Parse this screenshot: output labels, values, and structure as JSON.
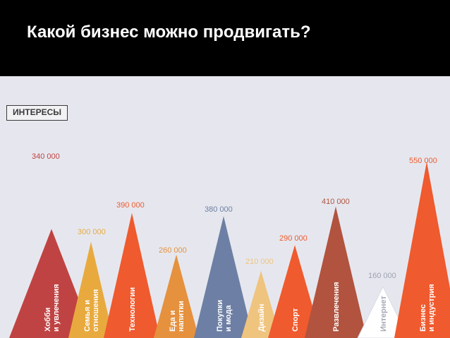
{
  "header": {
    "title": "Какой бизнес можно продвигать?"
  },
  "section_label": "ИНТЕРЕСЫ",
  "chart_data": {
    "type": "area",
    "title": "",
    "categories": [
      {
        "label": [
          "Хобби",
          "и увлечения"
        ],
        "value": 340000,
        "value_label": "340 000",
        "color": "#c04343"
      },
      {
        "label": [
          "Семья и",
          "отношения"
        ],
        "value": 300000,
        "value_label": "300 000",
        "color": "#e8aa3f"
      },
      {
        "label": [
          "Технологии"
        ],
        "value": 390000,
        "value_label": "390 000",
        "color": "#ef5a2e"
      },
      {
        "label": [
          "Еда и",
          "напитки"
        ],
        "value": 260000,
        "value_label": "260 000",
        "color": "#e5913e"
      },
      {
        "label": [
          "Покупки",
          "и мода"
        ],
        "value": 380000,
        "value_label": "380 000",
        "color": "#6d7fa4"
      },
      {
        "label": [
          "Дизайн"
        ],
        "value": 210000,
        "value_label": "210 000",
        "color": "#efc47f"
      },
      {
        "label": [
          "Спорт"
        ],
        "value": 290000,
        "value_label": "290 000",
        "color": "#ef5a2e"
      },
      {
        "label": [
          "Развлечения"
        ],
        "value": 410000,
        "value_label": "410 000",
        "color": "#b1533f"
      },
      {
        "label": [
          "Интернет"
        ],
        "value": 160000,
        "value_label": "160 000",
        "color": "#ffffff"
      },
      {
        "label": [
          "Бизнес",
          "и индустрия"
        ],
        "value": 550000,
        "value_label": "550 000",
        "color": "#ef5a2e"
      }
    ]
  }
}
